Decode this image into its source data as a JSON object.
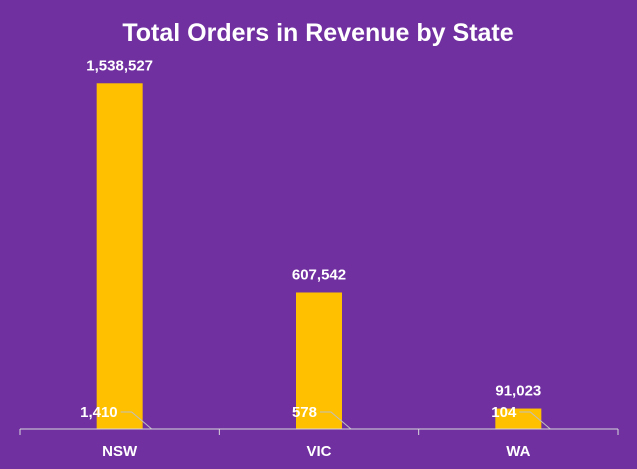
{
  "colors": {
    "background": "#7030a0",
    "bar": "#ffc000",
    "text": "#ffffff",
    "axis": "#d9d9d9",
    "leader": "#bfbfbf"
  },
  "chart_data": {
    "type": "bar",
    "title": "Total Orders in Revenue by State",
    "categories": [
      "NSW",
      "VIC",
      "WA"
    ],
    "series": [
      {
        "values": [
          1538527,
          607542,
          91023
        ],
        "value_labels": [
          "1,538,527",
          "607,542",
          "91,023"
        ]
      },
      {
        "values": [
          1410,
          578,
          104
        ],
        "value_labels": [
          "1,410",
          "578",
          "104"
        ]
      }
    ],
    "ylim": [
      0,
      1700000
    ],
    "grid": false,
    "legend": "none"
  }
}
